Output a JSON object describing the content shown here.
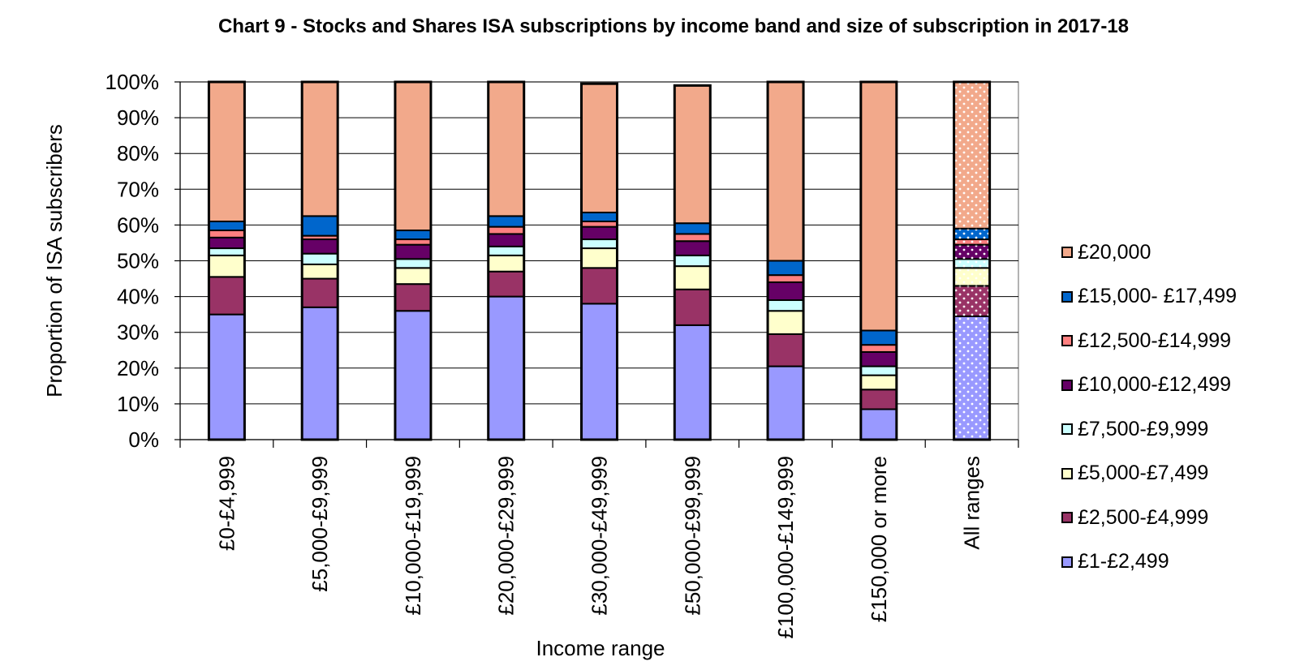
{
  "chart_data": {
    "type": "bar",
    "stacked": true,
    "title": "Chart 9 - Stocks and Shares ISA subscriptions  by income band and size of subscription  in 2017-18",
    "xlabel": "Income range",
    "ylabel": "Proportion of ISA subscribers",
    "ylim": [
      0,
      100
    ],
    "yticks": [
      "0%",
      "10%",
      "20%",
      "30%",
      "40%",
      "50%",
      "60%",
      "70%",
      "80%",
      "90%",
      "100%"
    ],
    "grid": true,
    "legend_position": "right",
    "categories": [
      "£0-£4,999",
      "£5,000-£9,999",
      "£10,000-£19,999",
      "£20,000-£29,999",
      "£30,000-£49,999",
      "£50,000-£99,999",
      "£100,000-£149,999",
      "£150,000 or more",
      "All ranges"
    ],
    "series": [
      {
        "name": "£1-£2,499",
        "color": "#9999ff",
        "values": [
          35,
          37,
          36,
          40,
          38,
          32,
          20.5,
          8.5,
          34.5
        ]
      },
      {
        "name": "£2,500-£4,999",
        "color": "#993366",
        "values": [
          10.5,
          8,
          7.5,
          7,
          10,
          10,
          9,
          5.5,
          8.5
        ]
      },
      {
        "name": "£5,000-£7,499",
        "color": "#ffffcc",
        "values": [
          6,
          4,
          4.5,
          4.5,
          5.5,
          6.5,
          6.5,
          4,
          5
        ]
      },
      {
        "name": "£7,500-£9,999",
        "color": "#ccffff",
        "values": [
          2,
          3,
          2.5,
          2.5,
          2.5,
          3,
          3,
          2.5,
          2.5
        ]
      },
      {
        "name": "£10,000-£12,499",
        "color": "#660066",
        "values": [
          3,
          4,
          4,
          3.5,
          3.5,
          4,
          5,
          4,
          4
        ]
      },
      {
        "name": "£12,500-£14,999",
        "color": "#ff8080",
        "values": [
          2,
          1,
          1.5,
          2,
          1.5,
          2,
          2,
          2,
          1.5
        ]
      },
      {
        "name": "£15,000- £17,499",
        "color": "#0066cc",
        "values": [
          2.5,
          5.5,
          2.5,
          3,
          2.5,
          3,
          4,
          4,
          3
        ]
      },
      {
        "name": "£20,000",
        "color": "#f2a98b",
        "values": [
          39,
          37.5,
          41.5,
          37.5,
          36,
          38.5,
          50,
          69.5,
          41
        ]
      }
    ],
    "patterned_categories": [
      "All ranges"
    ]
  }
}
